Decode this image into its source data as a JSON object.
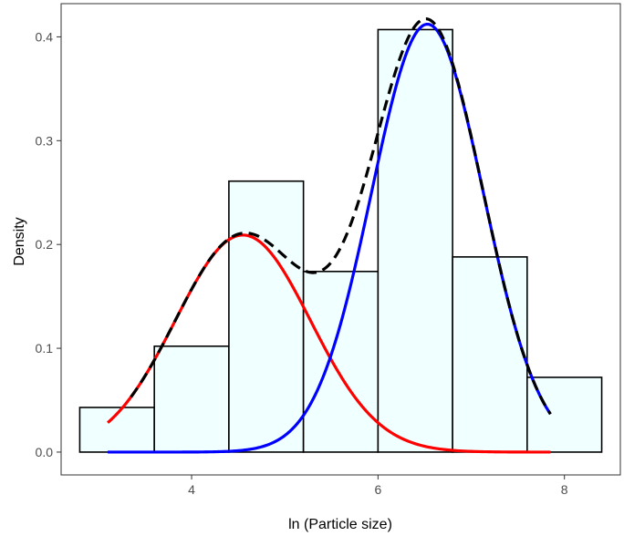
{
  "chart_data": {
    "type": "bar",
    "title": "",
    "xlabel": "ln (Particle size)",
    "ylabel": "Density",
    "xlim": [
      2.6,
      8.6
    ],
    "ylim": [
      -0.022,
      0.432
    ],
    "x_ticks": [
      4,
      6,
      8
    ],
    "y_ticks": [
      0.0,
      0.1,
      0.2,
      0.3,
      0.4
    ],
    "y_tick_labels": [
      "0.0",
      "0.1",
      "0.2",
      "0.3",
      "0.4"
    ],
    "grid": false,
    "histogram": {
      "bin_edges": [
        2.8,
        3.6,
        4.4,
        5.2,
        6.0,
        6.8,
        7.6,
        8.4
      ],
      "densities": [
        0.043,
        0.102,
        0.261,
        0.174,
        0.407,
        0.188,
        0.072
      ],
      "fill": "#f0ffff",
      "stroke": "#000000"
    },
    "series": [
      {
        "type": "line",
        "color": "#ff0000",
        "style": "solid",
        "x_range": [
          3.1,
          7.85
        ],
        "weight": 0.38,
        "mean": 4.55,
        "sd": 0.725
      },
      {
        "type": "line",
        "color": "#0000ff",
        "style": "solid",
        "x_range": [
          3.1,
          7.85
        ],
        "weight": 0.62,
        "mean": 6.53,
        "sd": 0.6
      },
      {
        "type": "line",
        "color": "#000000",
        "style": "dashed",
        "x_range": [
          3.35,
          7.85
        ],
        "mixture_of": [
          0,
          1
        ]
      }
    ]
  }
}
